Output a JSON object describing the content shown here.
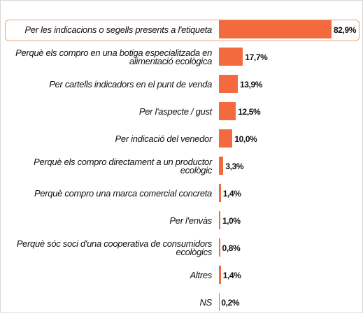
{
  "chart_data": {
    "type": "bar",
    "orientation": "horizontal",
    "color": "#f26a3d",
    "categories": [
      "Per les indicacions o segells presents a l'etiqueta",
      "Perquè els compro en una botiga especialitzada en alimentació ecològica",
      "Per cartells indicadors en el punt de venda",
      "Per l'aspecte / gust",
      "Per indicació del venedor",
      "Perquè els compro directament a un productor ecològic",
      "Perquè compro una marca comercial concreta",
      "Per l'envàs",
      "Perquè sóc soci d'una cooperativa de consumidors ecològics",
      "Altres",
      "NS"
    ],
    "values": [
      82.9,
      17.7,
      13.9,
      12.5,
      10.0,
      3.3,
      1.4,
      1.0,
      0.8,
      1.4,
      0.2
    ],
    "value_labels": [
      "82,9%",
      "17,7%",
      "13,9%",
      "12,5%",
      "10,0%",
      "3,3%",
      "1,4%",
      "1,0%",
      "0,8%",
      "1,4%",
      "0,2%"
    ]
  }
}
